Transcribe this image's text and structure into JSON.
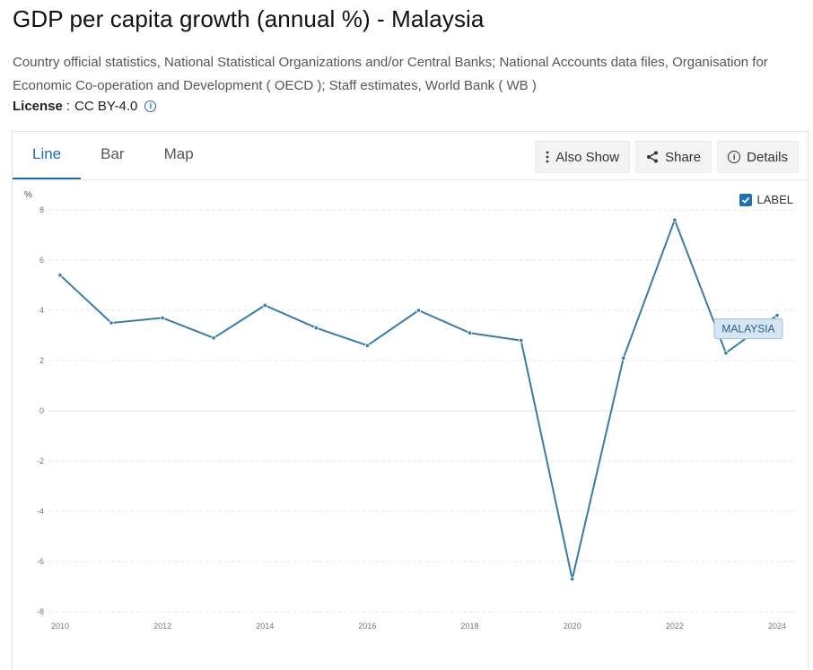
{
  "header": {
    "title": "GDP per capita growth (annual %) - Malaysia",
    "source": "Country official statistics, National Statistical Organizations and/or Central Banks; National Accounts data files, Organisation for Economic Co-operation and Development ( OECD ); Staff estimates, World Bank ( WB )",
    "license_label": "License",
    "license_sep": ":",
    "license_value": "CC BY-4.0"
  },
  "tabs": [
    {
      "label": "Line",
      "active": true
    },
    {
      "label": "Bar",
      "active": false
    },
    {
      "label": "Map",
      "active": false
    }
  ],
  "actions": {
    "also_show": "Also Show",
    "share": "Share",
    "details": "Details"
  },
  "label_toggle": {
    "label": "LABEL",
    "checked": true
  },
  "colors": {
    "accent": "#1f6fb2",
    "line": "#3a7ca8"
  },
  "chart_data": {
    "type": "line",
    "ylabel": "%",
    "xlabel": "",
    "ylim": [
      -8,
      8
    ],
    "yticks": [
      8,
      6,
      4,
      2,
      0,
      -2,
      -4,
      -6,
      -8
    ],
    "xlim": [
      2010,
      2024
    ],
    "xticks": [
      2010,
      2012,
      2014,
      2016,
      2018,
      2020,
      2022,
      2024
    ],
    "grid": true,
    "series": [
      {
        "name": "MALAYSIA",
        "x": [
          2010,
          2011,
          2012,
          2013,
          2014,
          2015,
          2016,
          2017,
          2018,
          2019,
          2020,
          2021,
          2022,
          2023,
          2024
        ],
        "values": [
          5.4,
          3.5,
          3.7,
          2.9,
          4.2,
          3.3,
          2.6,
          4.0,
          3.1,
          2.8,
          -6.7,
          2.1,
          7.6,
          2.3,
          3.8
        ]
      }
    ]
  }
}
